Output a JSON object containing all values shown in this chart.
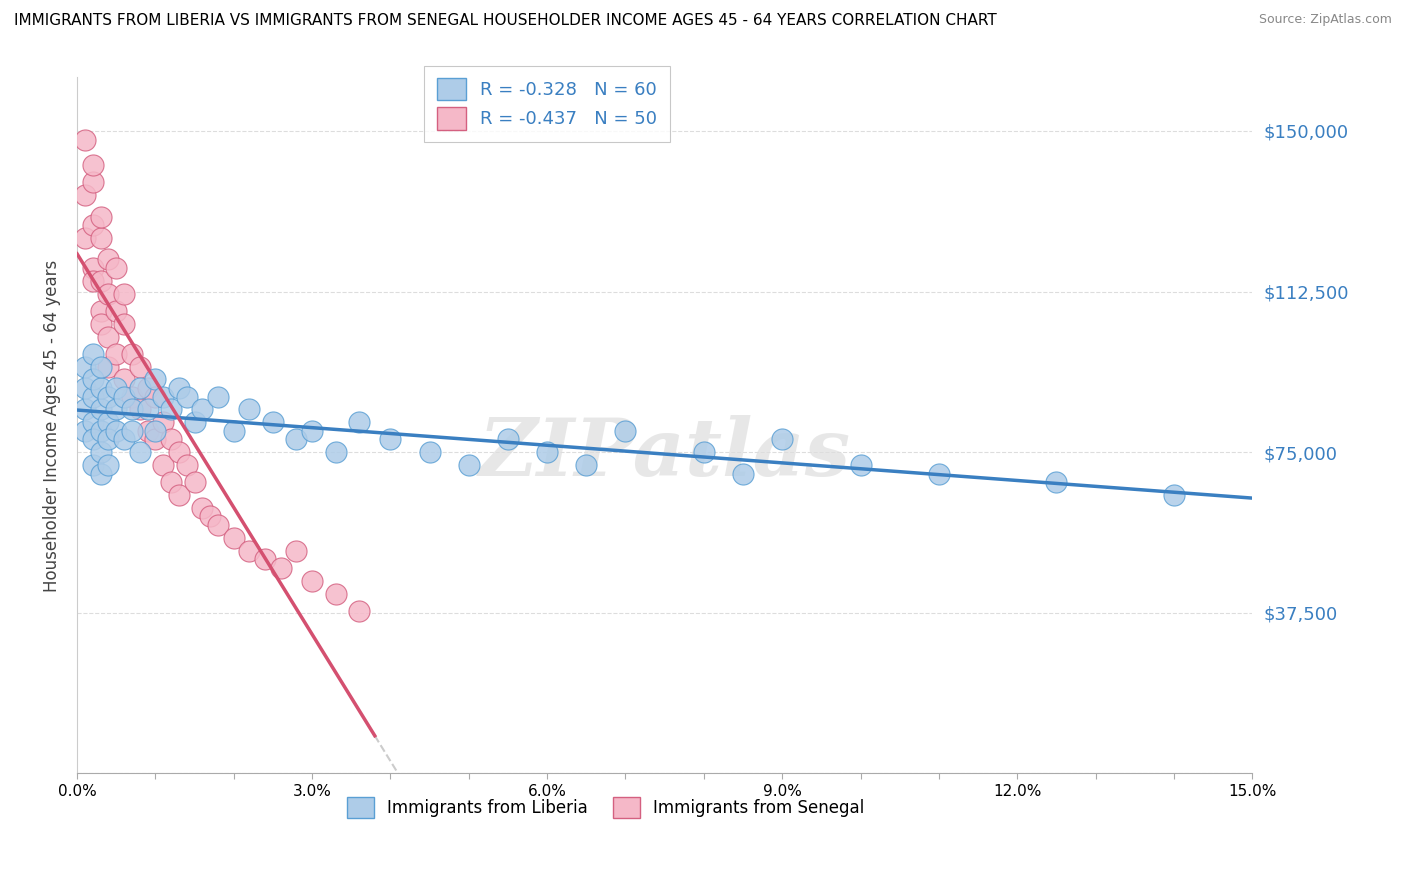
{
  "title": "IMMIGRANTS FROM LIBERIA VS IMMIGRANTS FROM SENEGAL HOUSEHOLDER INCOME AGES 45 - 64 YEARS CORRELATION CHART",
  "source": "Source: ZipAtlas.com",
  "ylabel": "Householder Income Ages 45 - 64 years",
  "liberia_color": "#aecce8",
  "senegal_color": "#f5b8c8",
  "liberia_edge_color": "#5a9fd4",
  "senegal_edge_color": "#d46080",
  "liberia_line_color": "#3a7fc1",
  "senegal_line_color": "#d45070",
  "right_label_color": "#3a7fc1",
  "liberia_R": -0.328,
  "liberia_N": 60,
  "senegal_R": -0.437,
  "senegal_N": 50,
  "xmin": 0.0,
  "xmax": 0.15,
  "ymin": 0,
  "ymax": 162500,
  "yticks": [
    0,
    37500,
    75000,
    112500,
    150000
  ],
  "ytick_labels": [
    "",
    "$37,500",
    "$75,000",
    "$112,500",
    "$150,000"
  ],
  "watermark": "ZIPatlas",
  "liberia_x": [
    0.001,
    0.001,
    0.001,
    0.001,
    0.002,
    0.002,
    0.002,
    0.002,
    0.002,
    0.002,
    0.003,
    0.003,
    0.003,
    0.003,
    0.003,
    0.003,
    0.004,
    0.004,
    0.004,
    0.004,
    0.005,
    0.005,
    0.005,
    0.006,
    0.006,
    0.007,
    0.007,
    0.008,
    0.008,
    0.009,
    0.01,
    0.01,
    0.011,
    0.012,
    0.013,
    0.014,
    0.015,
    0.016,
    0.018,
    0.02,
    0.022,
    0.025,
    0.028,
    0.03,
    0.033,
    0.036,
    0.04,
    0.045,
    0.05,
    0.055,
    0.06,
    0.065,
    0.07,
    0.08,
    0.085,
    0.09,
    0.1,
    0.11,
    0.125,
    0.14
  ],
  "liberia_y": [
    85000,
    90000,
    80000,
    95000,
    88000,
    82000,
    78000,
    92000,
    72000,
    98000,
    85000,
    80000,
    75000,
    90000,
    70000,
    95000,
    88000,
    82000,
    78000,
    72000,
    90000,
    85000,
    80000,
    88000,
    78000,
    85000,
    80000,
    90000,
    75000,
    85000,
    80000,
    92000,
    88000,
    85000,
    90000,
    88000,
    82000,
    85000,
    88000,
    80000,
    85000,
    82000,
    78000,
    80000,
    75000,
    82000,
    78000,
    75000,
    72000,
    78000,
    75000,
    72000,
    80000,
    75000,
    70000,
    78000,
    72000,
    70000,
    68000,
    65000
  ],
  "senegal_x": [
    0.001,
    0.001,
    0.001,
    0.002,
    0.002,
    0.002,
    0.002,
    0.002,
    0.003,
    0.003,
    0.003,
    0.003,
    0.003,
    0.004,
    0.004,
    0.004,
    0.004,
    0.005,
    0.005,
    0.005,
    0.006,
    0.006,
    0.006,
    0.007,
    0.007,
    0.008,
    0.008,
    0.009,
    0.009,
    0.01,
    0.01,
    0.011,
    0.011,
    0.012,
    0.012,
    0.013,
    0.013,
    0.014,
    0.015,
    0.016,
    0.017,
    0.018,
    0.02,
    0.022,
    0.024,
    0.026,
    0.028,
    0.03,
    0.033,
    0.036
  ],
  "senegal_y": [
    148000,
    135000,
    125000,
    138000,
    128000,
    118000,
    142000,
    115000,
    125000,
    115000,
    108000,
    130000,
    105000,
    120000,
    112000,
    102000,
    95000,
    108000,
    98000,
    118000,
    105000,
    92000,
    112000,
    98000,
    88000,
    95000,
    85000,
    90000,
    80000,
    88000,
    78000,
    82000,
    72000,
    78000,
    68000,
    75000,
    65000,
    72000,
    68000,
    62000,
    60000,
    58000,
    55000,
    52000,
    50000,
    48000,
    52000,
    45000,
    42000,
    38000
  ]
}
